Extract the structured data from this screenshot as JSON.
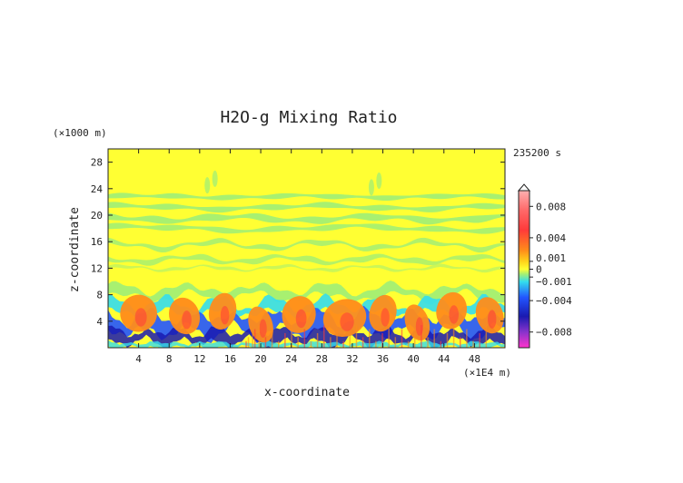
{
  "chart_data": {
    "type": "heatmap",
    "title": "H2O-g Mixing Ratio",
    "xlabel": "x-coordinate",
    "ylabel": "z-coordinate",
    "x_unit": "(×1E4 m)",
    "y_unit": "(×1000 m)",
    "time_label": "235200 s",
    "xlim": [
      0,
      52
    ],
    "ylim": [
      0,
      30
    ],
    "x_ticks": [
      4,
      8,
      12,
      16,
      20,
      24,
      28,
      32,
      36,
      40,
      44,
      48
    ],
    "y_ticks": [
      4,
      8,
      12,
      16,
      20,
      24,
      28
    ],
    "colorbar": {
      "labels": [
        {
          "value": 0.008,
          "text": "0.008"
        },
        {
          "value": 0.004,
          "text": "0.004"
        },
        {
          "value": 0.001,
          "text": "0.001"
        },
        {
          "value": 0,
          "text": "0"
        },
        {
          "value": -0.001,
          "text": "-0.001"
        },
        {
          "value": -0.004,
          "text": "-0.004"
        },
        {
          "value": -0.008,
          "text": "-0.008"
        }
      ],
      "range": [
        -0.01,
        0.01
      ]
    },
    "colors": {
      "positive_high": "#ffb0b0",
      "positive": "#ff3a3a",
      "orange": "#ff8c1a",
      "yellow": "#ffff33",
      "light_green": "#a8f070",
      "cyan": "#33ddee",
      "blue": "#2255ff",
      "dark_blue": "#1a1ab0",
      "purple": "#8833cc",
      "magenta": "#ff33cc"
    }
  }
}
